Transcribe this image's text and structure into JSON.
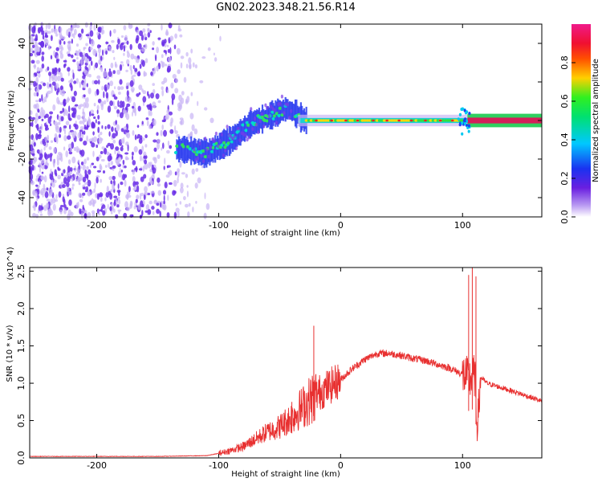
{
  "title": "GN02.2023.348.21.56.R14",
  "colors": {
    "snr_line": "#e83030",
    "spectro_low": "#c9b5f5",
    "spectro_mid": "#6a2ee8",
    "spectro_peak": "#d41f5a"
  },
  "chart_data": [
    {
      "type": "heatmap",
      "title": "",
      "xlabel": "Height of straight line (km)",
      "ylabel": "Frequency (Hz)",
      "xlim": [
        -255,
        165
      ],
      "ylim": [
        -50,
        50
      ],
      "xticks": [
        -200,
        -100,
        0,
        100
      ],
      "yticks": [
        -40,
        -20,
        0,
        20,
        40
      ],
      "colorbar": {
        "label": "Normalized spectral amplitude",
        "range": [
          0.0,
          1.0
        ],
        "ticks": [
          "0.0",
          "0.2",
          "0.4",
          "0.6",
          "0.8"
        ],
        "colormap": "rainbow (purple → blue → cyan → green → yellow → red → magenta)"
      },
      "ridge": {
        "x": [
          -130,
          -110,
          -90,
          -75,
          -60,
          -45,
          -38,
          -30,
          0,
          50,
          100,
          105,
          165
        ],
        "y": [
          -15,
          -17,
          -10,
          -2,
          2,
          6,
          4,
          0,
          0,
          0,
          0,
          0,
          0
        ]
      }
    },
    {
      "type": "line",
      "title": "",
      "xlabel": "Height of straight line (km)",
      "ylabel": "SNR (10 * v/v)",
      "y_scale_note": "(x10^4)",
      "xlim": [
        -255,
        165
      ],
      "ylim": [
        0,
        2.55
      ],
      "xticks": [
        -200,
        -100,
        0,
        100
      ],
      "yticks": [
        "0.0",
        "0.5",
        "1.0",
        "1.5",
        "2.0",
        "2.5"
      ],
      "series": [
        {
          "x": [
            -255,
            -200,
            -150,
            -110,
            -100,
            -90,
            -80,
            -70,
            -60,
            -50,
            -40,
            -30,
            -20,
            -10,
            0,
            10,
            20,
            30,
            40,
            50,
            60,
            70,
            80,
            90,
            100,
            105,
            110,
            112,
            115,
            120,
            140,
            165
          ],
          "values": [
            0.02,
            0.02,
            0.02,
            0.03,
            0.06,
            0.1,
            0.15,
            0.25,
            0.35,
            0.42,
            0.55,
            0.7,
            0.85,
            0.95,
            1.05,
            1.2,
            1.32,
            1.4,
            1.4,
            1.37,
            1.33,
            1.3,
            1.25,
            1.2,
            1.12,
            1.05,
            1.1,
            0.4,
            1.08,
            1.0,
            0.9,
            0.76
          ]
        }
      ],
      "spikes": [
        {
          "x": -22,
          "y": 1.77
        },
        {
          "x": -40,
          "y": 0.75
        },
        {
          "x": 105,
          "y": 2.45
        },
        {
          "x": 108,
          "y": 2.55
        },
        {
          "x": 111,
          "y": 2.43
        }
      ]
    }
  ]
}
